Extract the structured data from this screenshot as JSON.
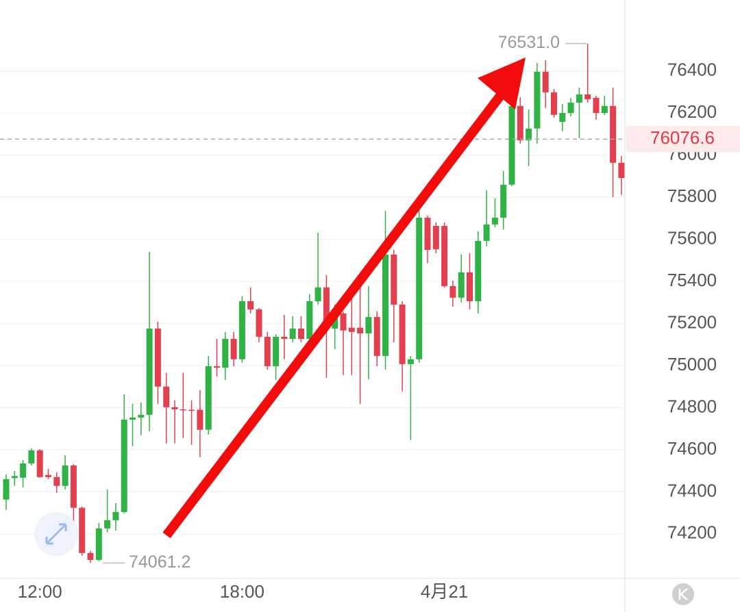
{
  "chart_data": {
    "type": "candlestick",
    "categories": [
      null,
      null,
      null,
      null,
      "12:00",
      null,
      null,
      null,
      null,
      null,
      null,
      null,
      null,
      null,
      null,
      null,
      null,
      null,
      null,
      null,
      null,
      null,
      null,
      null,
      null,
      null,
      null,
      null,
      "18:00",
      null,
      null,
      null,
      null,
      null,
      null,
      null,
      null,
      null,
      null,
      null,
      null,
      null,
      null,
      null,
      null,
      null,
      null,
      null,
      null,
      null,
      null,
      null,
      "4月21",
      null,
      null,
      null,
      null,
      null,
      null,
      null,
      null,
      null,
      null,
      null,
      null,
      null,
      null,
      null,
      null,
      null,
      null,
      null,
      null,
      null
    ],
    "open": [
      74363,
      74465,
      74467,
      74535,
      74597,
      74480,
      74470,
      74428,
      74525,
      74324,
      74109,
      74076,
      74226,
      74265,
      74304,
      74743,
      74753,
      74766,
      75176,
      74900,
      74802,
      74792,
      74790,
      74790,
      74695,
      74997,
      74990,
      75127,
      75030,
      75306,
      75267,
      75137,
      74997,
      75137,
      75127,
      75176,
      75127,
      75306,
      75372,
      75176,
      75248,
      75180,
      75180,
      75153,
      75231,
      75046,
      75528,
      75290,
      75007,
      75030,
      75703,
      75664,
      75664,
      75378,
      75323,
      75443,
      75306,
      75593,
      75671,
      75703,
      75860,
      76234,
      76071,
      76127,
      76397,
      76299,
      76159,
      76201,
      76250,
      76289,
      76273,
      76201,
      76234,
      75964
    ],
    "high": [
      74483,
      74499,
      74551,
      74607,
      74603,
      74509,
      74493,
      74574,
      74532,
      74330,
      74119,
      74252,
      74411,
      74346,
      74864,
      74818,
      74825,
      75541,
      75209,
      74965,
      74835,
      74965,
      74835,
      74883,
      75046,
      75127,
      75160,
      75160,
      75329,
      75372,
      75274,
      75160,
      75150,
      75241,
      75235,
      75235,
      75339,
      75632,
      75430,
      75290,
      75258,
      75372,
      75404,
      75378,
      75258,
      75736,
      75551,
      75306,
      75046,
      75746,
      75713,
      75681,
      75681,
      75404,
      75528,
      75534,
      75638,
      75834,
      75795,
      75925,
      76283,
      76276,
      76218,
      76439,
      76452,
      76315,
      76244,
      76273,
      76322,
      76531,
      76283,
      76283,
      76322,
      75996
    ],
    "low": [
      74314,
      74428,
      74421,
      74525,
      74467,
      74460,
      74395,
      74411,
      74233,
      74096,
      74061.2,
      74070,
      74207,
      74216,
      74298,
      74617,
      74669,
      74688,
      74818,
      74630,
      74630,
      74656,
      74623,
      74565,
      74672,
      74948,
      74932,
      74997,
      75014,
      75248,
      75111,
      74981,
      74932,
      75030,
      75111,
      75111,
      75111,
      75290,
      74942,
      75079,
      74955,
      74955,
      74818,
      74935,
      74997,
      74981,
      75111,
      74877,
      74646,
      75014,
      75486,
      75534,
      75372,
      75280,
      75300,
      75267,
      75248,
      75567,
      75658,
      75648,
      75853,
      76055,
      75948,
      76055,
      76224,
      76179,
      76114,
      76185,
      76081,
      76250,
      76169,
      76192,
      75801,
      75811
    ],
    "close": [
      74460,
      74475,
      74535,
      74597,
      74470,
      74470,
      74428,
      74525,
      74324,
      74109,
      74076,
      74226,
      74265,
      74304,
      74743,
      74753,
      74766,
      75176,
      74900,
      74802,
      74792,
      74790,
      74785,
      74695,
      74997,
      74990,
      75127,
      75030,
      75306,
      75267,
      75137,
      74997,
      75137,
      75127,
      75176,
      75127,
      75306,
      75372,
      75176,
      75248,
      75167,
      75160,
      75153,
      75231,
      75046,
      75528,
      75290,
      75007,
      75030,
      75703,
      75550,
      75553,
      75378,
      75323,
      75443,
      75306,
      75593,
      75671,
      75703,
      75860,
      76234,
      76071,
      76127,
      76397,
      76299,
      76192,
      76201,
      76250,
      76289,
      76266,
      76201,
      76234,
      75964,
      75892
    ],
    "up_color": "#2fb344",
    "down_color": "#e3404f",
    "ylim": [
      73988,
      76738
    ],
    "yticks": [
      74200,
      74400,
      74600,
      74800,
      75000,
      75200,
      75400,
      75600,
      75800,
      76000,
      76200,
      76400
    ],
    "grid": true,
    "current_price": 76076.6,
    "high_marker": {
      "value": 76531.0,
      "label": "76531.0"
    },
    "low_marker": 74061.2
  }
}
